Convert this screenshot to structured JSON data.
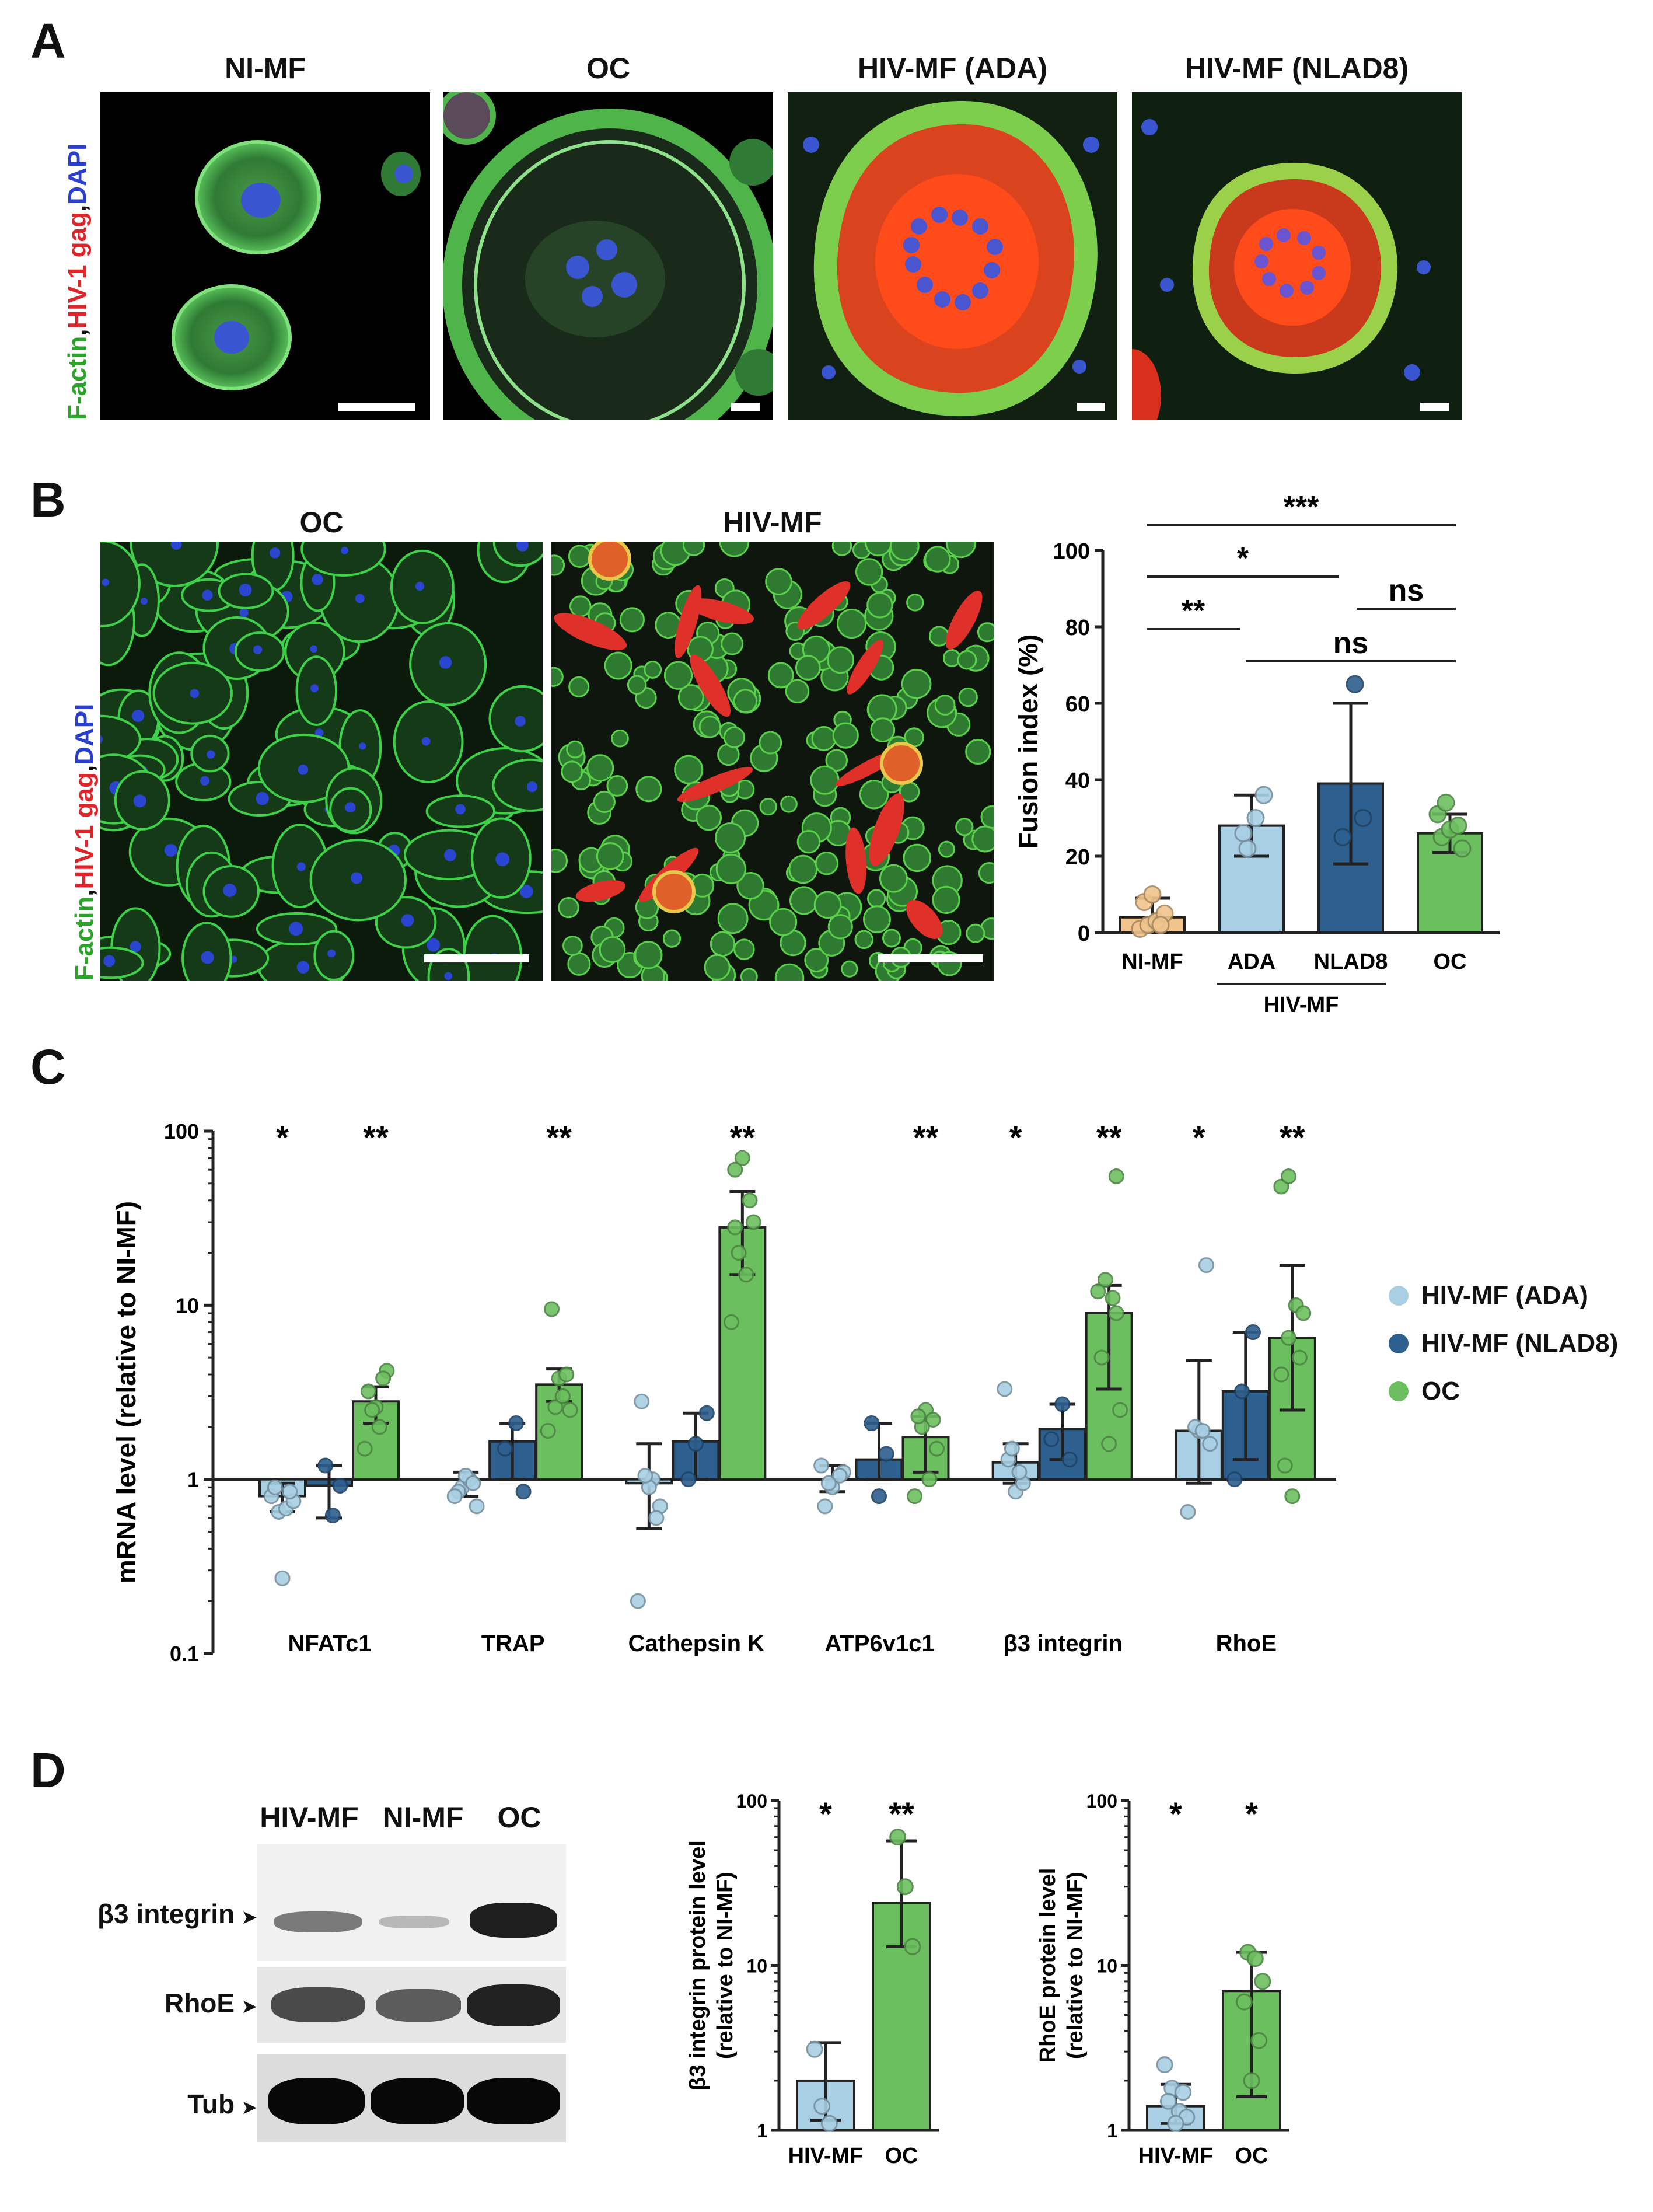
{
  "panels": {
    "A": {
      "label": "A",
      "channel_labels": [
        {
          "text": "F-actin",
          "color": "#2aa52a"
        },
        {
          "text": "HIV-1 gag",
          "color": "#e0252a"
        },
        {
          "text": "DAPI",
          "color": "#2a3fd0"
        }
      ],
      "images": [
        {
          "title": "NI-MF"
        },
        {
          "title": "OC"
        },
        {
          "title": "HIV-MF (ADA)"
        },
        {
          "title": "HIV-MF (NLAD8)"
        }
      ]
    },
    "B": {
      "label": "B",
      "channel_labels": [
        {
          "text": "F-actin",
          "color": "#2aa52a"
        },
        {
          "text": "HIV-1 gag",
          "color": "#e0252a"
        },
        {
          "text": "DAPI",
          "color": "#2a3fd0"
        }
      ],
      "images": [
        {
          "title": "OC"
        },
        {
          "title": "HIV-MF"
        }
      ]
    },
    "C": {
      "label": "C"
    },
    "D": {
      "label": "D",
      "blot": {
        "lanes": [
          "HIV-MF",
          "NI-MF",
          "OC"
        ],
        "rows": [
          {
            "label": "β3 integrin",
            "arrow": "➤"
          },
          {
            "label": "RhoE",
            "arrow": "➤"
          },
          {
            "label": "Tub",
            "arrow": "➤"
          }
        ]
      }
    }
  },
  "colors": {
    "ni_mf": "#f0c48c",
    "hiv_ada": "#a9cfe4",
    "hiv_nlad8": "#2d5f8f",
    "oc": "#6cbf5f"
  },
  "chart_data": [
    {
      "id": "fusion",
      "type": "bar",
      "ylabel": "Fusion index (%)",
      "ylim": [
        0,
        100
      ],
      "yticks": [
        0,
        20,
        40,
        60,
        80,
        100
      ],
      "categories": [
        "NI-MF",
        "ADA",
        "NLAD8",
        "OC"
      ],
      "group_label": "HIV-MF",
      "values": [
        4,
        28,
        39,
        26
      ],
      "errors": [
        5,
        8,
        21,
        5
      ],
      "points": [
        [
          1,
          2,
          3,
          5,
          8,
          10,
          2
        ],
        [
          22,
          30,
          36,
          26
        ],
        [
          65,
          30,
          25
        ],
        [
          22,
          25,
          27,
          28,
          31,
          34
        ]
      ],
      "significance": [
        {
          "from": 0,
          "to": 3,
          "text": "***"
        },
        {
          "from": 0,
          "to": 2,
          "text": "*"
        },
        {
          "from": 0,
          "to": 1,
          "text": "**"
        },
        {
          "from": 2,
          "to": 3,
          "text": "ns"
        },
        {
          "from": 1,
          "to": 3,
          "text": "ns"
        }
      ]
    },
    {
      "id": "mrna",
      "type": "bar",
      "scale": "log",
      "ylabel": "mRNA level (relative to NI-MF)",
      "ylim": [
        0.1,
        100
      ],
      "yticks": [
        {
          "v": 0.1,
          "t": "0.1"
        },
        {
          "v": 1,
          "t": "1"
        },
        {
          "v": 10,
          "t": "10"
        },
        {
          "v": 100,
          "t": "100"
        }
      ],
      "categories": [
        "NFATc1",
        "TRAP",
        "Cathepsin K",
        "ATP6v1c1",
        "β3 integrin",
        "RhoE"
      ],
      "series": [
        {
          "name": "HIV-MF (ADA)",
          "values": [
            0.8,
            1.0,
            0.95,
            1.0,
            1.25,
            1.9
          ],
          "err_hi": [
            0.95,
            1.1,
            1.6,
            1.2,
            1.6,
            4.8
          ],
          "err_lo": [
            0.65,
            0.8,
            0.52,
            0.85,
            0.95,
            0.95
          ],
          "points": [
            [
              0.8,
              0.65,
              0.68,
              0.75,
              0.9,
              0.27,
              0.85
            ],
            [
              0.9,
              1.0,
              0.7,
              0.85,
              1.05,
              0.95,
              0.8
            ],
            [
              1.0,
              0.7,
              2.8,
              0.9,
              0.6,
              0.2,
              1.05
            ],
            [
              1.1,
              0.7,
              0.9,
              1.05,
              1.2,
              0.95
            ],
            [
              1.3,
              0.85,
              0.95,
              3.3,
              1.5,
              1.1
            ],
            [
              1.9,
              17,
              0.65,
              2.0,
              1.9,
              1.6
            ]
          ]
        },
        {
          "name": "HIV-MF (NLAD8)",
          "values": [
            0.92,
            1.65,
            1.65,
            1.3,
            1.95,
            3.2
          ],
          "err_hi": [
            1.2,
            2.1,
            2.4,
            2.1,
            2.7,
            7.0
          ],
          "err_lo": [
            0.6,
            1.0,
            1.0,
            1.0,
            1.3,
            1.3
          ],
          "points": [
            [
              1.2,
              0.62,
              0.92
            ],
            [
              2.1,
              0.85,
              1.5
            ],
            [
              2.4,
              1.0,
              1.6
            ],
            [
              2.1,
              0.8,
              1.4
            ],
            [
              2.7,
              1.3,
              1.7
            ],
            [
              7.0,
              1.0,
              3.2
            ]
          ]
        },
        {
          "name": "OC",
          "values": [
            2.8,
            3.5,
            28,
            1.75,
            9.0,
            6.5
          ],
          "err_hi": [
            3.4,
            4.3,
            45,
            2.3,
            13,
            17
          ],
          "err_lo": [
            2.1,
            2.8,
            15,
            1.1,
            3.3,
            2.5
          ],
          "points": [
            [
              2.0,
              4.2,
              3.2,
              2.6,
              3.8,
              1.5,
              2.5
            ],
            [
              2.5,
              9.5,
              3.8,
              4.0,
              1.9,
              2.6,
              3.0
            ],
            [
              60,
              70,
              40,
              8.0,
              20,
              15,
              30,
              28
            ],
            [
              2.5,
              2.2,
              0.8,
              2.0,
              1.0,
              1.5,
              2.3
            ],
            [
              55,
              12,
              14,
              11,
              2.5,
              5.0,
              1.6,
              9.0
            ],
            [
              48,
              55,
              10,
              9.0,
              1.2,
              0.8,
              5.0,
              4.0,
              6.5
            ]
          ]
        }
      ],
      "significance": [
        {
          "cat": 0,
          "series": 0,
          "text": "*"
        },
        {
          "cat": 0,
          "series": 2,
          "text": "**"
        },
        {
          "cat": 1,
          "series": 2,
          "text": "**"
        },
        {
          "cat": 2,
          "series": 2,
          "text": "**"
        },
        {
          "cat": 3,
          "series": 2,
          "text": "**"
        },
        {
          "cat": 4,
          "series": 0,
          "text": "*"
        },
        {
          "cat": 4,
          "series": 2,
          "text": "**"
        },
        {
          "cat": 5,
          "series": 0,
          "text": "*"
        },
        {
          "cat": 5,
          "series": 2,
          "text": "**"
        }
      ]
    },
    {
      "id": "b3protein",
      "type": "bar",
      "scale": "log",
      "ylabel": "β3 integrin protein level",
      "ylabel2": "(relative to NI-MF)",
      "ylim": [
        1,
        100
      ],
      "yticks": [
        {
          "v": 1,
          "t": "1"
        },
        {
          "v": 10,
          "t": "10"
        },
        {
          "v": 100,
          "t": "100"
        }
      ],
      "categories": [
        "HIV-MF",
        "OC"
      ],
      "values": [
        2.0,
        24
      ],
      "err_hi": [
        3.4,
        57
      ],
      "err_lo": [
        1.15,
        13
      ],
      "points": [
        [
          3.1,
          1.4,
          1.1
        ],
        [
          60,
          30,
          13
        ]
      ],
      "significance": [
        "*",
        "**"
      ]
    },
    {
      "id": "rhoeprotein",
      "type": "bar",
      "scale": "log",
      "ylabel": "RhoE protein level",
      "ylabel2": "(relative to NI-MF)",
      "ylim": [
        1,
        100
      ],
      "yticks": [
        {
          "v": 1,
          "t": "1"
        },
        {
          "v": 10,
          "t": "10"
        },
        {
          "v": 100,
          "t": "100"
        }
      ],
      "categories": [
        "HIV-MF",
        "OC"
      ],
      "values": [
        1.4,
        7.0
      ],
      "err_hi": [
        1.9,
        12
      ],
      "err_lo": [
        1.1,
        1.6
      ],
      "points": [
        [
          2.5,
          1.8,
          1.3,
          1.2,
          1.5,
          1.1,
          1.7
        ],
        [
          12,
          11,
          8.0,
          6.0,
          2.0,
          3.5
        ]
      ],
      "significance": [
        "*",
        "*"
      ]
    }
  ],
  "legend": [
    {
      "label": "HIV-MF (ADA)",
      "color": "#a9cfe4"
    },
    {
      "label": "HIV-MF (NLAD8)",
      "color": "#2d5f8f"
    },
    {
      "label": "OC",
      "color": "#6cbf5f"
    }
  ]
}
